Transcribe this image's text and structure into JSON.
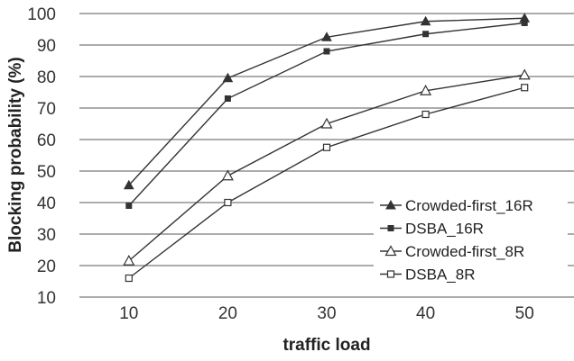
{
  "chart_data": {
    "type": "line",
    "title": "",
    "xlabel": "traffic load",
    "ylabel": "Blocking probability (%)",
    "x": [
      10,
      20,
      30,
      40,
      50
    ],
    "xticks": [
      "10",
      "20",
      "30",
      "40",
      "50"
    ],
    "yticks": [
      "10",
      "20",
      "30",
      "40",
      "50",
      "60",
      "70",
      "80",
      "90",
      "100"
    ],
    "ylim": [
      10,
      100
    ],
    "grid": "horizontal",
    "legend_position": "right",
    "series": [
      {
        "name": "Crowded-first_16R",
        "marker": "triangle-filled",
        "color": "#333333",
        "values": [
          45.5,
          79.5,
          92.5,
          97.5,
          98.5
        ]
      },
      {
        "name": "DSBA_16R",
        "marker": "square-filled",
        "color": "#333333",
        "values": [
          39,
          73,
          88,
          93.5,
          97
        ]
      },
      {
        "name": "Crowded-first_8R",
        "marker": "triangle-open",
        "color": "#333333",
        "values": [
          21.5,
          48.5,
          65,
          75.5,
          80.5
        ]
      },
      {
        "name": "DSBA_8R",
        "marker": "square-open",
        "color": "#333333",
        "values": [
          16,
          40,
          57.5,
          68,
          76.5
        ]
      }
    ]
  }
}
